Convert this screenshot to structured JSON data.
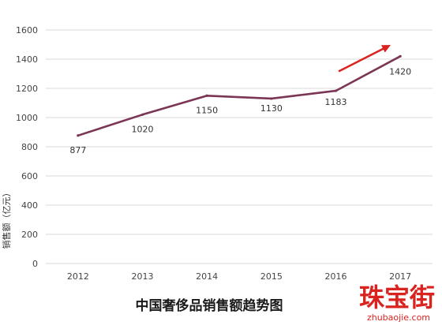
{
  "chart_data": {
    "type": "line",
    "title": "中国奢侈品销售额趋势图",
    "ylabel": "销售额（亿元）",
    "xlabel": "",
    "categories": [
      "2012",
      "2013",
      "2014",
      "2015",
      "2016",
      "2017"
    ],
    "series": [
      {
        "values": [
          877,
          1020,
          1150,
          1130,
          1183,
          1420
        ],
        "color": "#7b3555"
      }
    ],
    "data_labels": [
      "877",
      "1020",
      "1150",
      "1130",
      "1183",
      "1420"
    ],
    "ylim": [
      0,
      1600
    ],
    "yticks": [
      0,
      200,
      400,
      600,
      800,
      1000,
      1200,
      1400,
      1600
    ],
    "grid": "horizontal",
    "legend": "none",
    "annotation": {
      "type": "arrow",
      "meaning": "rising trend",
      "color": "#d9231f"
    }
  },
  "watermark": {
    "text_cn": "珠宝街",
    "text_en": "zhubaojie.com",
    "color": "#d9231f"
  }
}
